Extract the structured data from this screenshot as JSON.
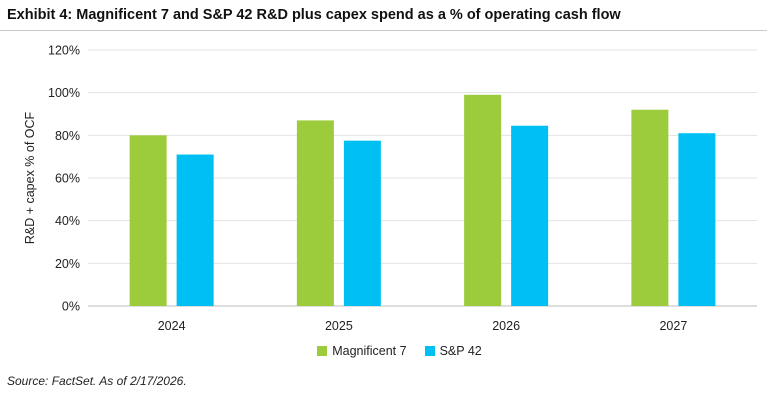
{
  "title": "Exhibit 4: Magnificent 7 and S&P 42 R&D plus capex spend as a % of operating cash flow",
  "source": "Source: FactSet. As of 2/17/2026.",
  "chart_data": {
    "type": "bar",
    "title": "Exhibit 4: Magnificent 7 and S&P 42 R&D plus capex spend as a % of operating cash flow",
    "xlabel": "",
    "ylabel": "R&D + capex % of OCF",
    "categories": [
      "2024",
      "2025",
      "2026",
      "2027"
    ],
    "series": [
      {
        "name": "Magnificent 7",
        "color": "#9ccb3b",
        "values": [
          80,
          87,
          99,
          92
        ]
      },
      {
        "name": "S&P 42",
        "color": "#00bff3",
        "values": [
          71,
          77.5,
          84.5,
          81
        ]
      }
    ],
    "ylim": [
      0,
      120
    ],
    "yticks": [
      0,
      20,
      40,
      60,
      80,
      100,
      120
    ],
    "ytick_labels": [
      "0%",
      "20%",
      "40%",
      "60%",
      "80%",
      "100%",
      "120%"
    ],
    "grid": true,
    "legend_position": "bottom"
  }
}
